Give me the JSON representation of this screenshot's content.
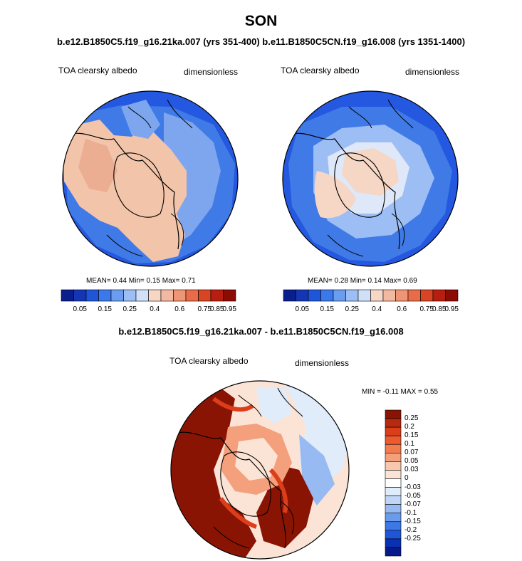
{
  "title": "SON",
  "subtitle": "b.e12.B1850C5.f19_g16.21ka.007 (yrs 351-400) b.e11.B1850C5CN.f19_g16.008 (yrs 1351-1400)",
  "diff_title": "b.e12.B1850C5.f19_g16.21ka.007 - b.e11.B1850C5CN.f19_g16.008",
  "panels": [
    {
      "variable": "TOA clearsky albedo",
      "units": "dimensionless",
      "stats": {
        "mean_label": "MEAN=",
        "mean": "0.44",
        "min_label": "Min=",
        "min": "0.15",
        "max_label": "Max=",
        "max": "0.71"
      }
    },
    {
      "variable": "TOA clearsky albedo",
      "units": "dimensionless",
      "stats": {
        "mean_label": "MEAN=",
        "mean": "0.28",
        "min_label": "Min=",
        "min": "0.14",
        "max_label": "Max=",
        "max": "0.69"
      }
    },
    {
      "variable": "TOA clearsky albedo",
      "units": "dimensionless",
      "stats_text": "MIN =  -0.11 MAX =   0.55"
    }
  ],
  "abs_colorbar": {
    "colors": [
      "#0a1e8c",
      "#1436b4",
      "#1f55d8",
      "#3a78ec",
      "#6a9cf0",
      "#9dbef4",
      "#cfe0f8",
      "#f6d6c4",
      "#f3b8a0",
      "#ef9474",
      "#e86c48",
      "#d84424",
      "#b81e10",
      "#8c0c04"
    ],
    "labels": [
      "0.05",
      "0.15",
      "0.25",
      "0.4",
      "0.6",
      "0.75",
      "0.85",
      "0.95"
    ]
  },
  "diff_colorbar": {
    "colors": [
      "#8a1404",
      "#b82a10",
      "#dc3e1a",
      "#ec5a2e",
      "#f27c50",
      "#f5a07c",
      "#f8c8ae",
      "#fbe4d6",
      "#ffffff",
      "#e0ecfa",
      "#c0d6f6",
      "#98baf2",
      "#6a9cee",
      "#3e78e6",
      "#1f55d8",
      "#0a30b4",
      "#061a8c"
    ],
    "labels": [
      "0.25",
      "0.2",
      "0.15",
      "0.1",
      "0.07",
      "0.05",
      "0.03",
      "0",
      "-0.03",
      "-0.05",
      "-0.07",
      "-0.1",
      "-0.15",
      "-0.2",
      "-0.25"
    ]
  },
  "chart_data": [
    {
      "type": "heatmap",
      "title": "TOA clearsky albedo",
      "units": "dimensionless",
      "projection": "north polar stereographic",
      "mean": 0.44,
      "min": 0.15,
      "max": 0.71,
      "levels": [
        0.05,
        0.1,
        0.15,
        0.2,
        0.25,
        0.3,
        0.4,
        0.5,
        0.6,
        0.7,
        0.75,
        0.8,
        0.85,
        0.9,
        0.95
      ]
    },
    {
      "type": "heatmap",
      "title": "TOA clearsky albedo",
      "units": "dimensionless",
      "projection": "north polar stereographic",
      "mean": 0.28,
      "min": 0.14,
      "max": 0.69,
      "levels": [
        0.05,
        0.1,
        0.15,
        0.2,
        0.25,
        0.3,
        0.4,
        0.5,
        0.6,
        0.7,
        0.75,
        0.8,
        0.85,
        0.9,
        0.95
      ]
    },
    {
      "type": "heatmap",
      "title": "TOA clearsky albedo (difference)",
      "units": "dimensionless",
      "projection": "north polar stereographic",
      "min": -0.11,
      "max": 0.55,
      "levels": [
        -0.25,
        -0.2,
        -0.15,
        -0.1,
        -0.07,
        -0.05,
        -0.03,
        0,
        0.03,
        0.05,
        0.07,
        0.1,
        0.15,
        0.2,
        0.25
      ]
    }
  ]
}
